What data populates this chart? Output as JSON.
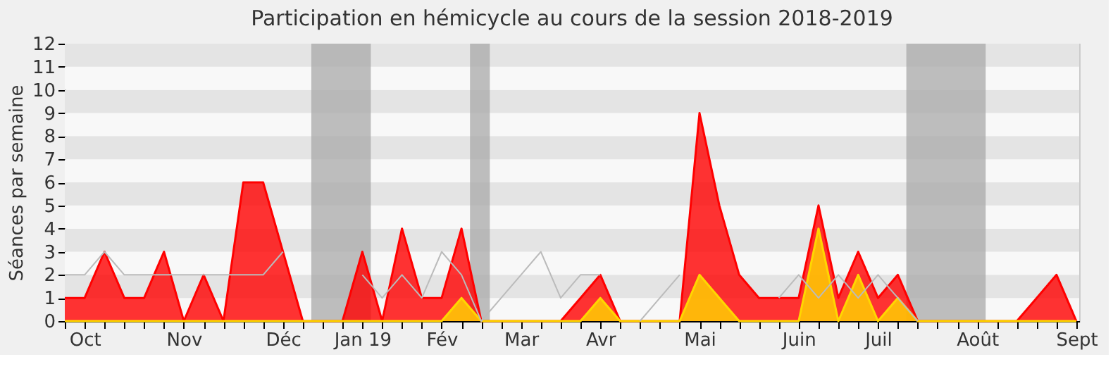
{
  "chart_data": {
    "type": "area",
    "title": "Participation en hémicycle au cours de la session 2018-2019",
    "ylabel": "Séances par semaine",
    "x": [
      "2018-09-24",
      "2018-10-01",
      "2018-10-08",
      "2018-10-15",
      "2018-10-22",
      "2018-10-29",
      "2018-11-05",
      "2018-11-12",
      "2018-11-19",
      "2018-11-26",
      "2018-12-03",
      "2018-12-10",
      "2018-12-17",
      "2018-12-24",
      "2018-12-31",
      "2019-01-07",
      "2019-01-14",
      "2019-01-21",
      "2019-01-28",
      "2019-02-04",
      "2019-02-11",
      "2019-02-18",
      "2019-02-25",
      "2019-03-04",
      "2019-03-11",
      "2019-03-18",
      "2019-03-25",
      "2019-04-01",
      "2019-04-08",
      "2019-04-15",
      "2019-04-22",
      "2019-04-29",
      "2019-05-06",
      "2019-05-13",
      "2019-05-20",
      "2019-05-27",
      "2019-06-03",
      "2019-06-10",
      "2019-06-17",
      "2019-06-24",
      "2019-07-01",
      "2019-07-08",
      "2019-07-15",
      "2019-07-22",
      "2019-07-29",
      "2019-08-05",
      "2019-08-12",
      "2019-08-19",
      "2019-08-26",
      "2019-09-02",
      "2019-09-09",
      "2019-09-16"
    ],
    "series": [
      {
        "type": "line",
        "color": "#bbbbbb",
        "values": [
          2,
          2,
          3,
          2,
          2,
          2,
          2,
          2,
          2,
          2,
          2,
          3,
          null,
          null,
          null,
          2,
          1,
          2,
          1,
          3,
          2,
          0,
          1,
          2,
          3,
          1,
          2,
          2,
          null,
          0,
          1,
          2,
          null,
          null,
          null,
          null,
          1,
          2,
          1,
          2,
          1,
          2,
          1,
          0,
          null,
          null,
          null,
          null,
          null,
          null,
          null,
          null
        ]
      },
      {
        "color": "#ff0000",
        "values": [
          1,
          1,
          3,
          1,
          1,
          3,
          0,
          2,
          0,
          6,
          6,
          3,
          0,
          0,
          0,
          3,
          0,
          4,
          1,
          1,
          4,
          0,
          0,
          0,
          0,
          0,
          1,
          2,
          0,
          0,
          0,
          0,
          9,
          5,
          2,
          1,
          1,
          1,
          5,
          1,
          3,
          1,
          2,
          0,
          0,
          0,
          0,
          0,
          0,
          1,
          2,
          0
        ]
      },
      {
        "color": "#ffd700",
        "values": [
          0,
          0,
          0,
          0,
          0,
          0,
          0,
          0,
          0,
          0,
          0,
          0,
          0,
          0,
          0,
          0,
          0,
          0,
          0,
          0,
          1,
          0,
          0,
          0,
          0,
          0,
          0,
          1,
          0,
          0,
          0,
          0,
          2,
          1,
          0,
          0,
          0,
          0,
          4,
          0,
          2,
          0,
          1,
          0,
          0,
          0,
          0,
          0,
          0,
          0,
          0,
          0
        ]
      }
    ],
    "bands": [
      {
        "axis": "x",
        "from": "2018-12-20",
        "to": "2019-01-10",
        "color": "#aaaaaa"
      },
      {
        "axis": "x",
        "from": "2019-02-14",
        "to": "2019-02-21",
        "color": "#aaaaaa"
      },
      {
        "axis": "x",
        "from": "2019-07-18",
        "to": "2019-08-15",
        "color": "#aaaaaa"
      }
    ],
    "xlim": [
      "2018-09-24",
      "2019-09-17"
    ],
    "ylim": [
      0,
      12
    ],
    "yticks": [
      0,
      1,
      2,
      3,
      4,
      5,
      6,
      7,
      8,
      9,
      10,
      11,
      12
    ],
    "xticks": [
      {
        "value": "2018-09-24",
        "label": null
      },
      {
        "value": "2018-10-01",
        "label": "Oct"
      },
      {
        "value": "2018-10-08",
        "label": null
      },
      {
        "value": "2018-10-15",
        "label": null
      },
      {
        "value": "2018-10-22",
        "label": null
      },
      {
        "value": "2018-10-29",
        "label": null
      },
      {
        "value": "2018-11-05",
        "label": "Nov"
      },
      {
        "value": "2018-11-12",
        "label": null
      },
      {
        "value": "2018-11-19",
        "label": null
      },
      {
        "value": "2018-11-26",
        "label": null
      },
      {
        "value": "2018-12-03",
        "label": null
      },
      {
        "value": "2018-12-10",
        "label": "Déc"
      },
      {
        "value": "2018-12-17",
        "label": null
      },
      {
        "value": "2018-12-24",
        "label": null
      },
      {
        "value": "2018-12-31",
        "label": null
      },
      {
        "value": "2019-01-07",
        "label": "Jan 19"
      },
      {
        "value": "2019-01-14",
        "label": null
      },
      {
        "value": "2019-01-21",
        "label": null
      },
      {
        "value": "2019-01-28",
        "label": null
      },
      {
        "value": "2019-02-04",
        "label": "Fév"
      },
      {
        "value": "2019-02-11",
        "label": null
      },
      {
        "value": "2019-02-18",
        "label": null
      },
      {
        "value": "2019-02-25",
        "label": null
      },
      {
        "value": "2019-03-04",
        "label": "Mar"
      },
      {
        "value": "2019-03-11",
        "label": null
      },
      {
        "value": "2019-03-18",
        "label": null
      },
      {
        "value": "2019-03-25",
        "label": null
      },
      {
        "value": "2019-04-01",
        "label": "Avr"
      },
      {
        "value": "2019-04-08",
        "label": null
      },
      {
        "value": "2019-04-15",
        "label": null
      },
      {
        "value": "2019-04-22",
        "label": null
      },
      {
        "value": "2019-04-29",
        "label": null
      },
      {
        "value": "2019-05-06",
        "label": "Mai"
      },
      {
        "value": "2019-05-13",
        "label": null
      },
      {
        "value": "2019-05-20",
        "label": null
      },
      {
        "value": "2019-05-27",
        "label": null
      },
      {
        "value": "2019-06-03",
        "label": null
      },
      {
        "value": "2019-06-10",
        "label": "Juin"
      },
      {
        "value": "2019-06-17",
        "label": null
      },
      {
        "value": "2019-06-24",
        "label": null
      },
      {
        "value": "2019-07-01",
        "label": null
      },
      {
        "value": "2019-07-08",
        "label": "Juil"
      },
      {
        "value": "2019-07-15",
        "label": null
      },
      {
        "value": "2019-07-22",
        "label": null
      },
      {
        "value": "2019-07-29",
        "label": null
      },
      {
        "value": "2019-08-05",
        "label": null
      },
      {
        "value": "2019-08-12",
        "label": "Août"
      },
      {
        "value": "2019-08-19",
        "label": null
      },
      {
        "value": "2019-08-26",
        "label": null
      },
      {
        "value": "2019-09-02",
        "label": null
      },
      {
        "value": "2019-09-09",
        "label": null
      },
      {
        "value": "2019-09-16",
        "label": "Sept"
      }
    ]
  }
}
